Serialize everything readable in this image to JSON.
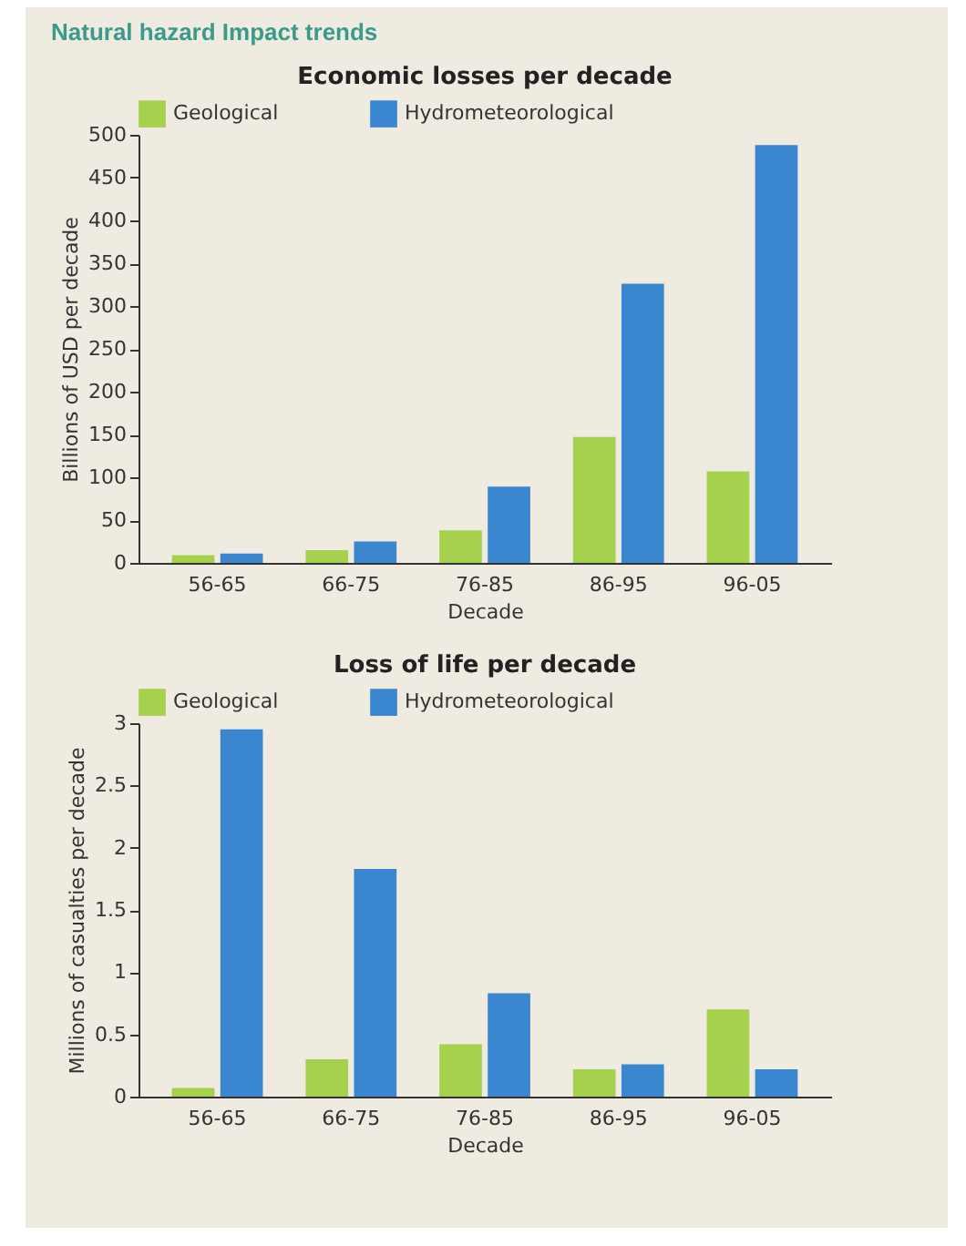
{
  "chart_data": [
    {
      "type": "bar",
      "title": "Natural hazard Impact trends",
      "subtitle": "Economic losses per decade",
      "xlabel": "Decade",
      "ylabel": "Billions of USD per decade",
      "categories": [
        "56-65",
        "66-75",
        "76-85",
        "86-95",
        "96-05"
      ],
      "series": [
        {
          "name": "Geological",
          "color": "#a6d14f",
          "values": [
            9,
            15,
            38,
            147,
            107
          ]
        },
        {
          "name": "Hydrometeorological",
          "color": "#3a87cf",
          "values": [
            11,
            25,
            89,
            326,
            488
          ]
        }
      ],
      "ylim": [
        0,
        500
      ],
      "yticks": [
        0,
        50,
        100,
        150,
        200,
        250,
        300,
        350,
        400,
        450,
        500
      ],
      "legend": "top"
    },
    {
      "type": "bar",
      "title": "Loss of life per decade",
      "xlabel": "Decade",
      "ylabel": "Millions of casualties per decade",
      "categories": [
        "56-65",
        "66-75",
        "76-85",
        "86-95",
        "96-05"
      ],
      "series": [
        {
          "name": "Geological",
          "color": "#a6d14f",
          "values": [
            0.07,
            0.3,
            0.42,
            0.22,
            0.7
          ]
        },
        {
          "name": "Hydrometeorological",
          "color": "#3a87cf",
          "values": [
            2.95,
            1.83,
            0.83,
            0.26,
            0.22
          ]
        }
      ],
      "ylim": [
        0,
        3
      ],
      "yticks": [
        0,
        0.5,
        1,
        1.5,
        2,
        2.5,
        3
      ],
      "legend": "top"
    }
  ]
}
